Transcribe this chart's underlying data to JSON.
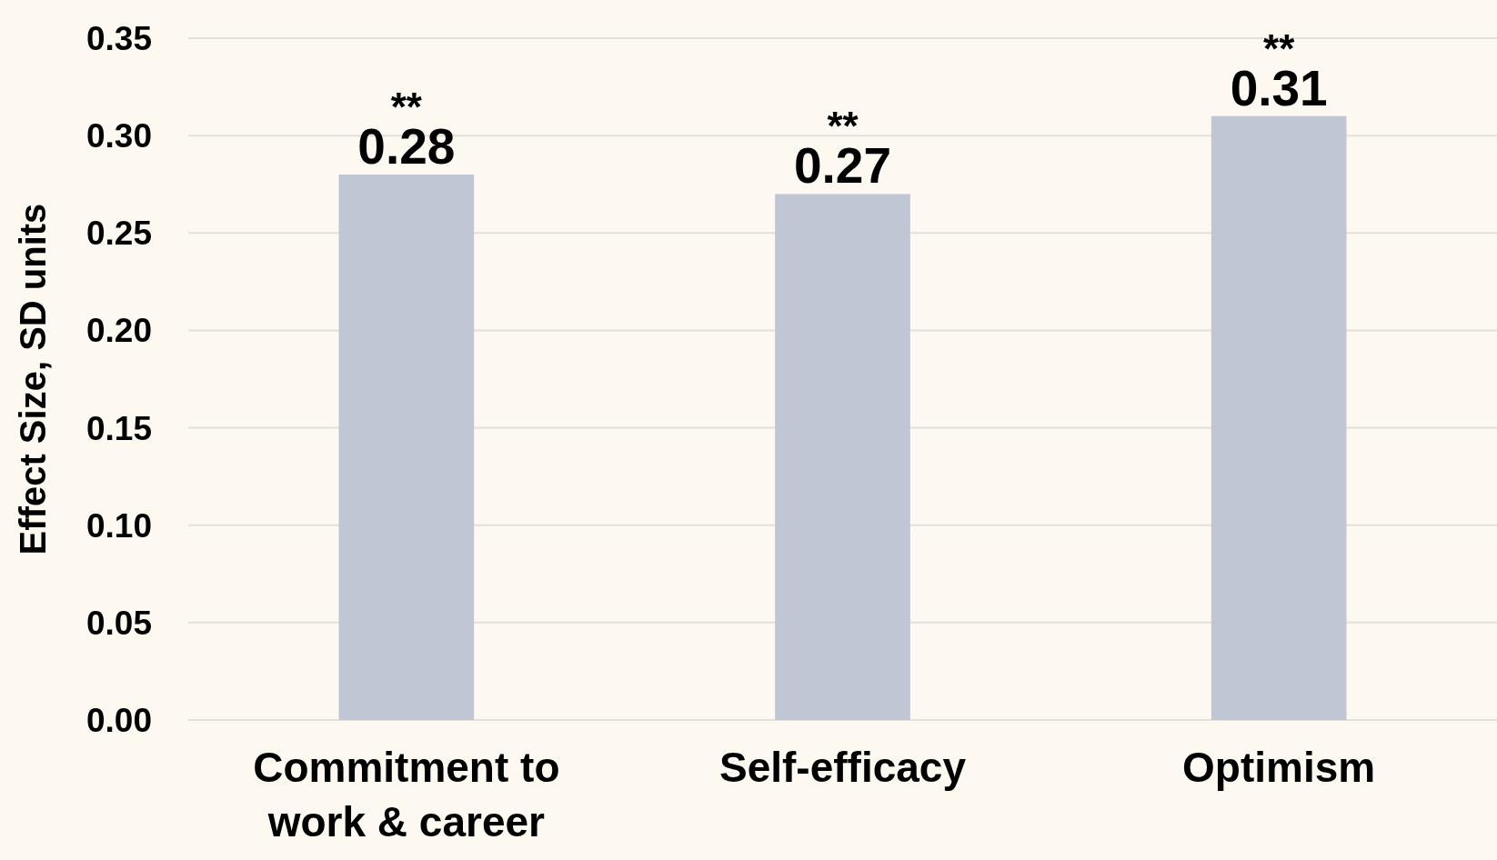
{
  "chart_data": {
    "type": "bar",
    "ylabel": "Effect Size, SD units",
    "categories": [
      "Commitment to work & career",
      "Self-efficacy",
      "Optimism"
    ],
    "values": [
      0.28,
      0.27,
      0.31
    ],
    "color": "#c0c6d3",
    "data_labels": true,
    "ylim": [
      0,
      0.35
    ],
    "yticks": [
      {
        "value": 0,
        "label": "0.00"
      },
      {
        "value": 0.05,
        "label": "0.05"
      },
      {
        "value": 0.1,
        "label": "0.10"
      },
      {
        "value": 0.15,
        "label": "0.15"
      },
      {
        "value": 0.2,
        "label": "0.20"
      },
      {
        "value": 0.25,
        "label": "0.25"
      },
      {
        "value": 0.3,
        "label": "0.30"
      },
      {
        "value": 0.35,
        "label": "0.35"
      }
    ],
    "grid": "y",
    "annotations": [
      {
        "text": "**",
        "x": "Commitment to work & career",
        "y": 0.28
      },
      {
        "text": "**",
        "x": "Self-efficacy",
        "y": 0.27
      },
      {
        "text": "**",
        "x": "Optimism",
        "y": 0.31
      }
    ]
  }
}
